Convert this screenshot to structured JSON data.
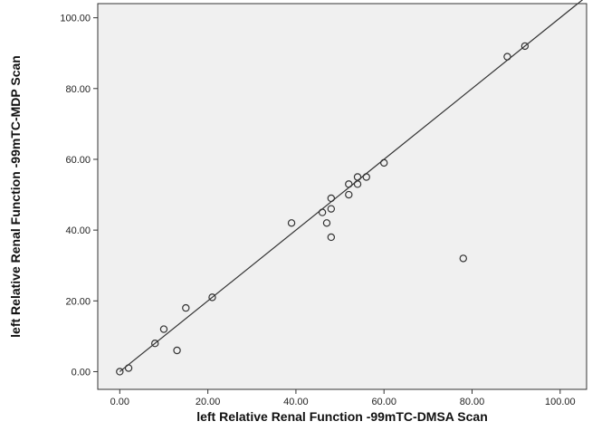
{
  "chart_data": {
    "type": "scatter",
    "title": "",
    "xlabel": "left  Relative Renal Function -99mTC-DMSA Scan",
    "ylabel": "left  Relative Renal Function -99mTC-MDP Scan",
    "xlim": [
      -5,
      106
    ],
    "ylim": [
      -5,
      104
    ],
    "x_ticks": [
      0,
      20,
      40,
      60,
      80,
      100
    ],
    "y_ticks": [
      0,
      20,
      40,
      60,
      80,
      100
    ],
    "x_tick_labels": [
      "0.00",
      "20.00",
      "40.00",
      "60.00",
      "80.00",
      "100.00"
    ],
    "y_tick_labels": [
      "0.00",
      "20.00",
      "40.00",
      "60.00",
      "80.00",
      "100.00"
    ],
    "reference_line": {
      "type": "identity",
      "from": [
        0,
        0
      ],
      "to": [
        106,
        106
      ]
    },
    "grid": false,
    "legend": "none",
    "colors": {
      "background": "#f0f0f0",
      "frame": "#333333",
      "marker": "#333333",
      "line": "#333333"
    },
    "points": [
      {
        "x": 0,
        "y": 0
      },
      {
        "x": 2,
        "y": 1
      },
      {
        "x": 8,
        "y": 8
      },
      {
        "x": 10,
        "y": 12
      },
      {
        "x": 13,
        "y": 6
      },
      {
        "x": 15,
        "y": 18
      },
      {
        "x": 21,
        "y": 21
      },
      {
        "x": 39,
        "y": 42
      },
      {
        "x": 46,
        "y": 45
      },
      {
        "x": 47,
        "y": 42
      },
      {
        "x": 48,
        "y": 49
      },
      {
        "x": 48,
        "y": 46
      },
      {
        "x": 48,
        "y": 38
      },
      {
        "x": 52,
        "y": 50
      },
      {
        "x": 52,
        "y": 53
      },
      {
        "x": 54,
        "y": 53
      },
      {
        "x": 54,
        "y": 55
      },
      {
        "x": 56,
        "y": 55
      },
      {
        "x": 60,
        "y": 59
      },
      {
        "x": 78,
        "y": 32
      },
      {
        "x": 88,
        "y": 89
      },
      {
        "x": 92,
        "y": 92
      }
    ]
  }
}
